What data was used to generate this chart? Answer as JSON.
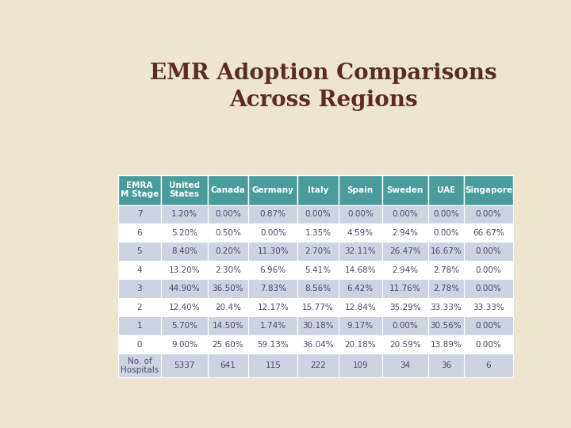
{
  "title": "EMR Adoption Comparisons\nAcross Regions",
  "title_color": "#5C2D1E",
  "header_bg": "#4A9B9B",
  "header_text_color": "#FFFFFF",
  "row_bg_odd": "#CDD3E0",
  "row_bg_even": "#FFFFFF",
  "last_row_bg": "#CDD3E0",
  "text_color": "#4A4A6A",
  "col_headers": [
    "EMRA\nM Stage",
    "United\nStates",
    "Canada",
    "Germany",
    "Italy",
    "Spain",
    "Sweden",
    "UAE",
    "Singapore"
  ],
  "rows": [
    [
      "7",
      "1.20%",
      "0.00%",
      "0.87%",
      "0.00%",
      "0.00%",
      "0.00%",
      "0.00%",
      "0.00%"
    ],
    [
      "6",
      "5.20%",
      "0.50%",
      "0.00%",
      "1.35%",
      "4.59%",
      "2.94%",
      "0.00%",
      "66.67%"
    ],
    [
      "5",
      "8.40%",
      "0.20%",
      "11.30%",
      "2.70%",
      "32.11%",
      "26.47%",
      "16.67%",
      "0.00%"
    ],
    [
      "4",
      "13.20%",
      "2.30%",
      "6.96%",
      "5.41%",
      "14.68%",
      "2.94%",
      "2.78%",
      "0.00%"
    ],
    [
      "3",
      "44.90%",
      "36.50%",
      "7.83%",
      "8.56%",
      "6.42%",
      "11.76%",
      "2.78%",
      "0.00%"
    ],
    [
      "2",
      "12.40%",
      "20.4%",
      "12.17%",
      "15.77%",
      "12.84%",
      "35.29%",
      "33.33%",
      "33.33%"
    ],
    [
      "1",
      "5.70%",
      "14.50%",
      "1.74%",
      "30.18%",
      "9.17%",
      "0.00%",
      "30.56%",
      "0.00%"
    ],
    [
      "0",
      "9.00%",
      "25.60%",
      "59.13%",
      "36.04%",
      "20.18%",
      "20.59%",
      "13.89%",
      "0.00%"
    ]
  ],
  "footer": [
    "No. of\nHospitals",
    "5337",
    "641",
    "115",
    "222",
    "109",
    "34",
    "36",
    "6"
  ],
  "background_color": "#EDE5D0",
  "fig_width": 7.2,
  "fig_height": 5.4,
  "dpi": 100
}
